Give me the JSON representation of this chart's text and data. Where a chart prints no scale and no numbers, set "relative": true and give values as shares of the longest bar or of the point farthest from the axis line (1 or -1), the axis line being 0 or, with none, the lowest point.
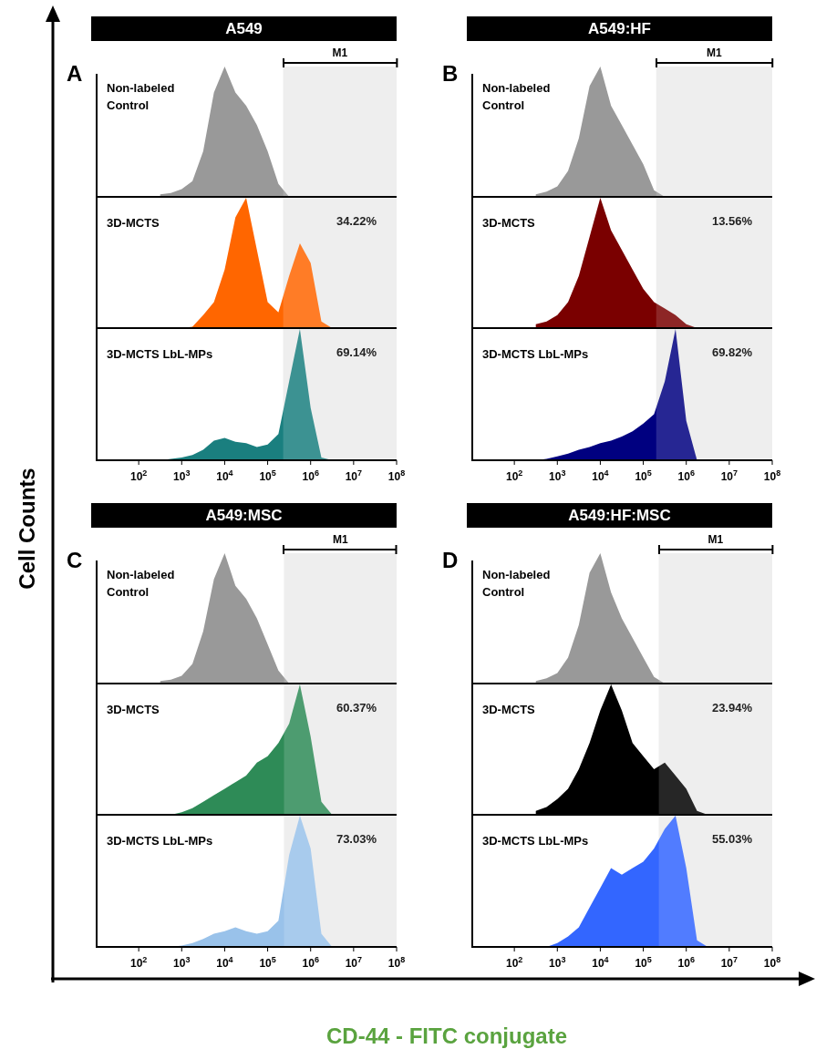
{
  "chart_data": [
    {
      "type": "area",
      "title": "A549",
      "annotations": [
        "A"
      ],
      "x": [
        316,
        562,
        1000,
        1778,
        3162,
        5623,
        10000,
        17783,
        31623,
        56234,
        100000,
        177828,
        316228,
        562341,
        1000000,
        1778279,
        3162278
      ],
      "relative": true,
      "log": "x",
      "xlim": [
        10,
        100000000
      ],
      "bands": [
        {
          "axis": "x",
          "from": 230000,
          "to": 100000000,
          "label": "M1",
          "color": "#ebebeb"
        }
      ],
      "series": [
        {
          "name": "Non-labeled Control",
          "color": "#999999",
          "values": [
            0.02,
            0.03,
            0.06,
            0.12,
            0.35,
            0.8,
            1.0,
            0.8,
            0.7,
            0.55,
            0.35,
            0.1,
            0,
            0,
            0,
            0,
            0
          ]
        }
      ]
    },
    {
      "type": "area",
      "annotations": [
        "34.22%"
      ],
      "x": [
        316,
        562,
        1000,
        1778,
        3162,
        5623,
        10000,
        17783,
        31623,
        56234,
        100000,
        177828,
        316228,
        562341,
        1000000,
        1778279,
        3162278
      ],
      "relative": true,
      "log": "x",
      "xlim": [
        10,
        100000000
      ],
      "bands": [
        {
          "axis": "x",
          "from": 230000,
          "to": 100000000,
          "color": "#ebebeb"
        }
      ],
      "series": [
        {
          "name": "3D-MCTS",
          "color": "#ff6600",
          "values": [
            0,
            0,
            0,
            0.01,
            0.1,
            0.2,
            0.45,
            0.85,
            1.0,
            0.6,
            0.2,
            0.12,
            0.4,
            0.65,
            0.5,
            0.05,
            0
          ]
        }
      ]
    },
    {
      "type": "area",
      "annotations": [
        "69.14%"
      ],
      "x": [
        316,
        562,
        1000,
        1778,
        3162,
        5623,
        10000,
        17783,
        31623,
        56234,
        100000,
        177828,
        316228,
        562341,
        1000000,
        1778279,
        3162278
      ],
      "relative": true,
      "log": "x",
      "xlim": [
        10,
        100000000
      ],
      "xticks": [
        {
          "value": 100,
          "label": "10$^{2}$"
        },
        {
          "value": 1000,
          "label": "10$^{3}$"
        },
        {
          "value": 10000,
          "label": "10$^{4}$"
        },
        {
          "value": 100000,
          "label": "10$^{5}$"
        },
        {
          "value": 1000000,
          "label": "10$^{6}$"
        },
        {
          "value": 10000000,
          "label": "10$^{7}$"
        },
        {
          "value": 100000000,
          "label": "10$^{8}$"
        }
      ],
      "bands": [
        {
          "axis": "x",
          "from": 230000,
          "to": 100000000,
          "color": "#ebebeb"
        }
      ],
      "series": [
        {
          "name": "3D-MCTS LbL-MPs",
          "color": "#1a7f7f",
          "values": [
            0,
            0.01,
            0.02,
            0.04,
            0.08,
            0.15,
            0.17,
            0.14,
            0.13,
            0.1,
            0.12,
            0.2,
            0.6,
            1.0,
            0.4,
            0.02,
            0
          ]
        }
      ]
    },
    {
      "type": "area",
      "title": "A549:HF",
      "annotations": [
        "B"
      ],
      "x": [
        316,
        562,
        1000,
        1778,
        3162,
        5623,
        10000,
        17783,
        31623,
        56234,
        100000,
        177828,
        316228,
        562341,
        1000000,
        1778279,
        3162278
      ],
      "relative": true,
      "log": "x",
      "xlim": [
        10,
        100000000
      ],
      "bands": [
        {
          "axis": "x",
          "from": 200000,
          "to": 100000000,
          "label": "M1",
          "color": "#ebebeb"
        }
      ],
      "series": [
        {
          "name": "Non-labeled Control",
          "color": "#999999",
          "values": [
            0.02,
            0.04,
            0.08,
            0.2,
            0.45,
            0.85,
            1.0,
            0.7,
            0.55,
            0.4,
            0.25,
            0.05,
            0,
            0,
            0,
            0,
            0
          ]
        }
      ]
    },
    {
      "type": "area",
      "annotations": [
        "13.56%"
      ],
      "x": [
        316,
        562,
        1000,
        1778,
        3162,
        5623,
        10000,
        17783,
        31623,
        56234,
        100000,
        177828,
        316228,
        562341,
        1000000,
        1778279,
        3162278
      ],
      "relative": true,
      "log": "x",
      "xlim": [
        10,
        100000000
      ],
      "bands": [
        {
          "axis": "x",
          "from": 200000,
          "to": 100000000,
          "color": "#ebebeb"
        }
      ],
      "series": [
        {
          "name": "3D-MCTS",
          "color": "#7a0000",
          "values": [
            0.03,
            0.05,
            0.1,
            0.2,
            0.4,
            0.7,
            1.0,
            0.75,
            0.6,
            0.45,
            0.3,
            0.2,
            0.15,
            0.1,
            0.03,
            0,
            0
          ]
        }
      ]
    },
    {
      "type": "area",
      "annotations": [
        "69.82%"
      ],
      "x": [
        316,
        562,
        1000,
        1778,
        3162,
        5623,
        10000,
        17783,
        31623,
        56234,
        100000,
        177828,
        316228,
        562341,
        1000000,
        1778279,
        3162278
      ],
      "relative": true,
      "log": "x",
      "xlim": [
        10,
        100000000
      ],
      "xticks": [
        {
          "value": 100,
          "label": "10$^{2}$"
        },
        {
          "value": 1000,
          "label": "10$^{3}$"
        },
        {
          "value": 10000,
          "label": "10$^{4}$"
        },
        {
          "value": 100000,
          "label": "10$^{5}$"
        },
        {
          "value": 1000000,
          "label": "10$^{6}$"
        },
        {
          "value": 10000000,
          "label": "10$^{7}$"
        },
        {
          "value": 100000000,
          "label": "10$^{8}$"
        }
      ],
      "bands": [
        {
          "axis": "x",
          "from": 200000,
          "to": 100000000,
          "color": "#ebebeb"
        }
      ],
      "series": [
        {
          "name": "3D-MCTS LbL-MPs",
          "color": "#000080",
          "values": [
            0,
            0.01,
            0.03,
            0.05,
            0.08,
            0.1,
            0.13,
            0.15,
            0.18,
            0.22,
            0.28,
            0.35,
            0.6,
            1.0,
            0.3,
            0,
            0
          ]
        }
      ]
    },
    {
      "type": "area",
      "title": "A549:MSC",
      "annotations": [
        "C"
      ],
      "x": [
        316,
        562,
        1000,
        1778,
        3162,
        5623,
        10000,
        17783,
        31623,
        56234,
        100000,
        177828,
        316228,
        562341,
        1000000,
        1778279,
        3162278
      ],
      "relative": true,
      "log": "x",
      "xlim": [
        10,
        100000000
      ],
      "bands": [
        {
          "axis": "x",
          "from": 240000,
          "to": 100000000,
          "label": "M1",
          "color": "#ebebeb"
        }
      ],
      "series": [
        {
          "name": "Non-labeled Control",
          "color": "#999999",
          "values": [
            0.02,
            0.03,
            0.06,
            0.15,
            0.4,
            0.8,
            1.0,
            0.75,
            0.65,
            0.5,
            0.3,
            0.1,
            0,
            0,
            0,
            0,
            0
          ]
        }
      ]
    },
    {
      "type": "area",
      "annotations": [
        "60.37%"
      ],
      "x": [
        316,
        562,
        1000,
        1778,
        3162,
        5623,
        10000,
        17783,
        31623,
        56234,
        100000,
        177828,
        316228,
        562341,
        1000000,
        1778279,
        3162278
      ],
      "relative": true,
      "log": "x",
      "xlim": [
        10,
        100000000
      ],
      "bands": [
        {
          "axis": "x",
          "from": 240000,
          "to": 100000000,
          "color": "#ebebeb"
        }
      ],
      "series": [
        {
          "name": "3D-MCTS",
          "color": "#2e8b57",
          "values": [
            0,
            0,
            0.02,
            0.05,
            0.1,
            0.15,
            0.2,
            0.25,
            0.3,
            0.4,
            0.45,
            0.55,
            0.7,
            1.0,
            0.6,
            0.1,
            0
          ]
        }
      ]
    },
    {
      "type": "area",
      "annotations": [
        "73.03%"
      ],
      "x": [
        316,
        562,
        1000,
        1778,
        3162,
        5623,
        10000,
        17783,
        31623,
        56234,
        100000,
        177828,
        316228,
        562341,
        1000000,
        1778279,
        3162278
      ],
      "relative": true,
      "log": "x",
      "xlim": [
        10,
        100000000
      ],
      "xticks": [
        {
          "value": 100,
          "label": "10$^{2}$"
        },
        {
          "value": 1000,
          "label": "10$^{3}$"
        },
        {
          "value": 10000,
          "label": "10$^{4}$"
        },
        {
          "value": 100000,
          "label": "10$^{5}$"
        },
        {
          "value": 1000000,
          "label": "10$^{6}$"
        },
        {
          "value": 10000000,
          "label": "10$^{7}$"
        },
        {
          "value": 100000000,
          "label": "10$^{8}$"
        }
      ],
      "bands": [
        {
          "axis": "x",
          "from": 240000,
          "to": 100000000,
          "color": "#ebebeb"
        }
      ],
      "series": [
        {
          "name": "3D-MCTS LbL-MPs",
          "color": "#99c2ea",
          "values": [
            0,
            0,
            0.01,
            0.03,
            0.06,
            0.1,
            0.12,
            0.15,
            0.12,
            0.1,
            0.12,
            0.2,
            0.7,
            1.0,
            0.75,
            0.1,
            0
          ]
        }
      ]
    },
    {
      "type": "area",
      "title": "A549:HF:MSC",
      "annotations": [
        "D"
      ],
      "x": [
        316,
        562,
        1000,
        1778,
        3162,
        5623,
        10000,
        17783,
        31623,
        56234,
        100000,
        177828,
        316228,
        562341,
        1000000,
        1778279,
        3162278
      ],
      "relative": true,
      "log": "x",
      "xlim": [
        10,
        100000000
      ],
      "bands": [
        {
          "axis": "x",
          "from": 230000,
          "to": 100000000,
          "label": "M1",
          "color": "#ebebeb"
        }
      ],
      "series": [
        {
          "name": "Non-labeled Control",
          "color": "#999999",
          "values": [
            0.02,
            0.04,
            0.08,
            0.2,
            0.45,
            0.85,
            1.0,
            0.7,
            0.5,
            0.35,
            0.2,
            0.05,
            0,
            0,
            0,
            0,
            0
          ]
        }
      ]
    },
    {
      "type": "area",
      "annotations": [
        "23.94%"
      ],
      "x": [
        316,
        562,
        1000,
        1778,
        3162,
        5623,
        10000,
        17783,
        31623,
        56234,
        100000,
        177828,
        316228,
        562341,
        1000000,
        1778279,
        3162278
      ],
      "relative": true,
      "log": "x",
      "xlim": [
        10,
        100000000
      ],
      "bands": [
        {
          "axis": "x",
          "from": 230000,
          "to": 100000000,
          "color": "#ebebeb"
        }
      ],
      "series": [
        {
          "name": "3D-MCTS",
          "color": "#000000",
          "values": [
            0.03,
            0.06,
            0.12,
            0.2,
            0.35,
            0.55,
            0.8,
            1.0,
            0.8,
            0.55,
            0.45,
            0.35,
            0.4,
            0.3,
            0.2,
            0.03,
            0
          ]
        }
      ]
    },
    {
      "type": "area",
      "annotations": [
        "55.03%"
      ],
      "x": [
        316,
        562,
        1000,
        1778,
        3162,
        5623,
        10000,
        17783,
        31623,
        56234,
        100000,
        177828,
        316228,
        562341,
        1000000,
        1778279,
        3162278
      ],
      "relative": true,
      "log": "x",
      "xlim": [
        10,
        100000000
      ],
      "xticks": [
        {
          "value": 100,
          "label": "10$^{2}$"
        },
        {
          "value": 1000,
          "label": "10$^{3}$"
        },
        {
          "value": 10000,
          "label": "10$^{4}$"
        },
        {
          "value": 100000,
          "label": "10$^{5}$"
        },
        {
          "value": 1000000,
          "label": "10$^{6}$"
        },
        {
          "value": 10000000,
          "label": "10$^{7}$"
        },
        {
          "value": 100000000,
          "label": "10$^{8}$"
        }
      ],
      "bands": [
        {
          "axis": "x",
          "from": 230000,
          "to": 100000000,
          "color": "#ebebeb"
        }
      ],
      "series": [
        {
          "name": "3D-MCTS LbL-MPs",
          "color": "#3366ff",
          "values": [
            0,
            0,
            0.03,
            0.08,
            0.15,
            0.3,
            0.45,
            0.6,
            0.55,
            0.6,
            0.65,
            0.75,
            0.9,
            1.0,
            0.6,
            0.05,
            0
          ]
        }
      ]
    },
    {
      "type": "other",
      "xlabel": "CD-44 - FITC conjugate",
      "ylabel": "Cell Counts"
    }
  ]
}
